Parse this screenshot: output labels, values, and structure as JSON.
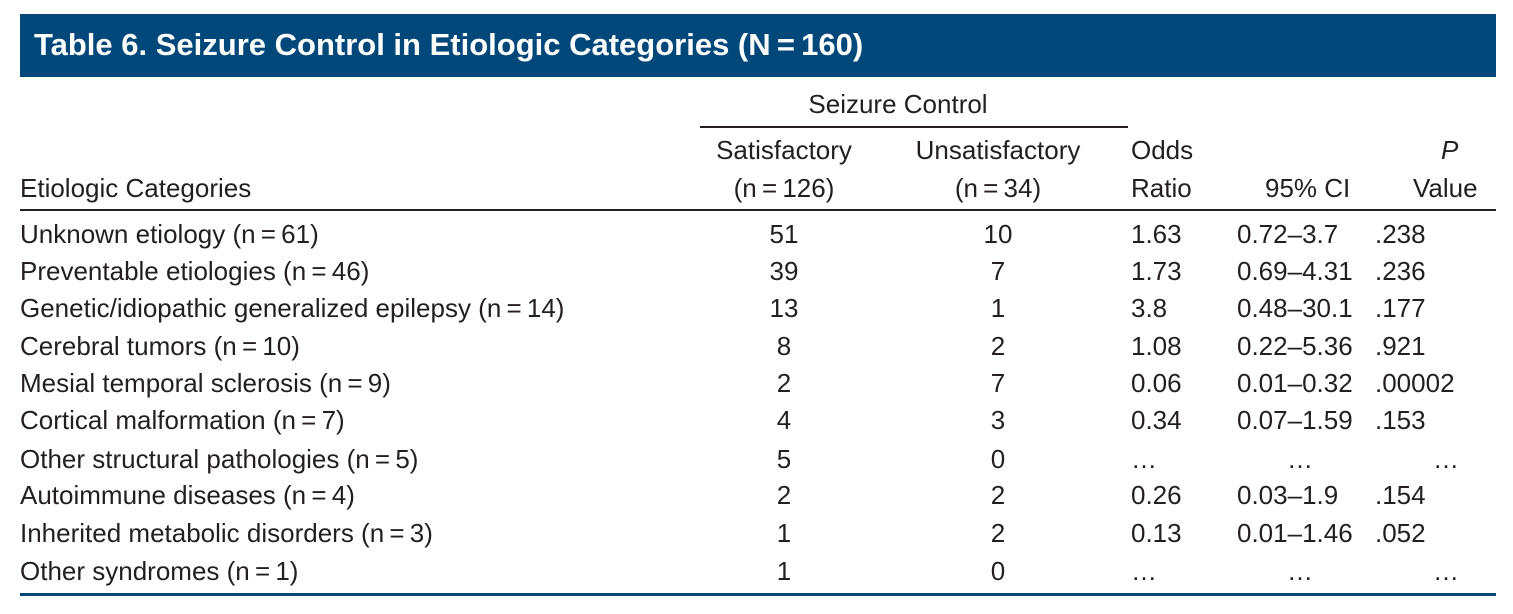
{
  "title": "Table 6. Seizure Control in Etiologic Categories (N = 160)",
  "headers": {
    "group": "Seizure Control",
    "category": "Etiologic Categories",
    "satisfactory_line1": "Satisfactory",
    "satisfactory_line2": "(n = 126)",
    "unsatisfactory_line1": "Unsatisfactory",
    "unsatisfactory_line2": "(n = 34)",
    "odds_line1": "Odds",
    "odds_line2": "Ratio",
    "ci": "95% CI",
    "p_line1": "P",
    "p_line2": "Value"
  },
  "rows": [
    {
      "category": "Unknown etiology (n = 61)",
      "satisfactory": "51",
      "unsatisfactory": "10",
      "odds_ratio": "1.63",
      "ci": "0.72–3.7",
      "p": ".238"
    },
    {
      "category": "Preventable etiologies (n = 46)",
      "satisfactory": "39",
      "unsatisfactory": "7",
      "odds_ratio": "1.73",
      "ci": "0.69–4.31",
      "p": ".236"
    },
    {
      "category": "Genetic/idiopathic generalized epilepsy (n = 14)",
      "satisfactory": "13",
      "unsatisfactory": "1",
      "odds_ratio": "3.8",
      "ci": "0.48–30.1",
      "p": ".177"
    },
    {
      "category": "Cerebral tumors (n = 10)",
      "satisfactory": "8",
      "unsatisfactory": "2",
      "odds_ratio": "1.08",
      "ci": "0.22–5.36",
      "p": ".921"
    },
    {
      "category": "Mesial temporal sclerosis (n = 9)",
      "satisfactory": "2",
      "unsatisfactory": "7",
      "odds_ratio": "0.06",
      "ci": "0.01–0.32",
      "p": ".00002"
    },
    {
      "category": "Cortical malformation (n = 7)",
      "satisfactory": "4",
      "unsatisfactory": "3",
      "odds_ratio": "0.34",
      "ci": "0.07–1.59",
      "p": ".153"
    },
    {
      "category": "Other structural pathologies (n = 5)",
      "satisfactory": "5",
      "unsatisfactory": "0",
      "odds_ratio": "…",
      "ci": "…",
      "p": "…"
    },
    {
      "category": "Autoimmune diseases (n = 4)",
      "satisfactory": "2",
      "unsatisfactory": "2",
      "odds_ratio": "0.26",
      "ci": "0.03–1.9",
      "p": ".154"
    },
    {
      "category": "Inherited metabolic disorders (n = 3)",
      "satisfactory": "1",
      "unsatisfactory": "2",
      "odds_ratio": "0.13",
      "ci": "0.01–1.46",
      "p": ".052"
    },
    {
      "category": "Other syndromes (n = 1)",
      "satisfactory": "1",
      "unsatisfactory": "0",
      "odds_ratio": "…",
      "ci": "…",
      "p": "…"
    }
  ],
  "colors": {
    "title_bar": "#004879",
    "title_text": "#ffffff",
    "text": "#231f20"
  }
}
